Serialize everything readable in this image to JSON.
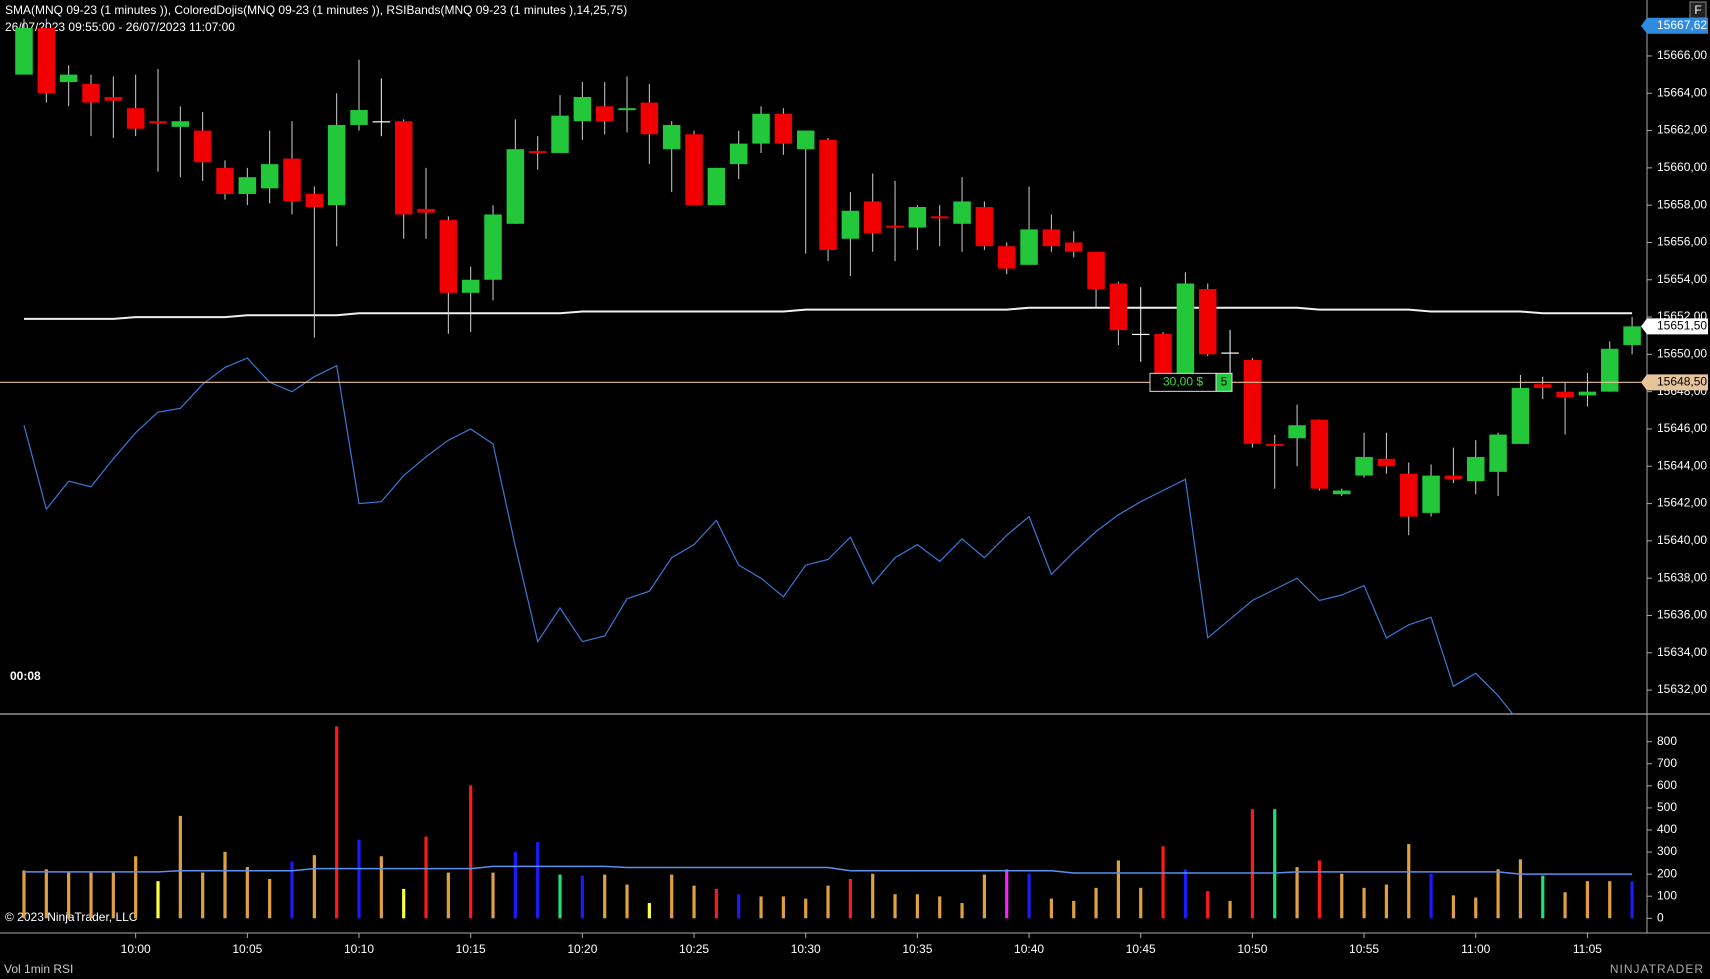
{
  "screen": {
    "title": "SMA(MNQ 09-23 (1 minutes )), ColoredDojis(MNQ 09-23 (1 minutes )), RSIBands(MNQ 09-23 (1 minutes ),14,25,75)",
    "date_range": "26/07/2023 09:55:00 - 26/07/2023 11:07:00",
    "timer": "00:08",
    "copyright": "© 2023 NinjaTrader, LLC",
    "panel_label": "Vol 1min RSI",
    "logo": "NINJATRADER",
    "button": "F"
  },
  "chart_data": [
    {
      "type": "candlestick",
      "up_color": "#22c83a",
      "down_color": "#f00000",
      "doji_color": "#ffffff",
      "ylim": [
        15630.7,
        15669.0
      ],
      "yticks": [
        {
          "value": 15632,
          "label": "15632,00"
        },
        {
          "value": 15634,
          "label": "15634,00"
        },
        {
          "value": 15636,
          "label": "15636,00"
        },
        {
          "value": 15638,
          "label": "15638,00"
        },
        {
          "value": 15640,
          "label": "15640,00"
        },
        {
          "value": 15642,
          "label": "15642,00"
        },
        {
          "value": 15644,
          "label": "15644,00"
        },
        {
          "value": 15646,
          "label": "15646,00"
        },
        {
          "value": 15648,
          "label": "15648,00"
        },
        {
          "value": 15650,
          "label": "15650,00"
        },
        {
          "value": 15652,
          "label": "15652,00"
        },
        {
          "value": 15654,
          "label": "15654,00"
        },
        {
          "value": 15656,
          "label": "15656,00"
        },
        {
          "value": 15658,
          "label": "15658,00"
        },
        {
          "value": 15660,
          "label": "15660,00"
        },
        {
          "value": 15662,
          "label": "15662,00"
        },
        {
          "value": 15664,
          "label": "15664,00"
        },
        {
          "value": 15666,
          "label": "15666,00"
        }
      ],
      "open": [
        15665.0,
        15667.5,
        15664.6,
        15664.5,
        15663.8,
        15663.2,
        15662.5,
        15662.2,
        15662.0,
        15660.0,
        15658.6,
        15658.9,
        15660.5,
        15658.6,
        15658.0,
        15662.3,
        15662.5,
        15662.5,
        15657.8,
        15657.2,
        15653.3,
        15654.0,
        15657.0,
        15660.9,
        15660.8,
        15662.5,
        15663.3,
        15663.1,
        15663.5,
        15661.0,
        15661.8,
        15658.0,
        15660.2,
        15661.3,
        15662.9,
        15661.0,
        15661.5,
        15656.2,
        15658.2,
        15656.9,
        15656.8,
        15657.4,
        15657.0,
        15657.9,
        15655.8,
        15654.8,
        15656.7,
        15656.0,
        15655.5,
        15653.8,
        15651.1,
        15651.1,
        15648.8,
        15653.5,
        15650.1,
        15649.7,
        15645.2,
        15645.5,
        15646.5,
        15642.5,
        15643.5,
        15644.4,
        15643.6,
        15641.5,
        15643.5,
        15643.2,
        15643.7,
        15645.2,
        15648.4,
        15648.0,
        15647.8,
        15648.0,
        15650.5
      ],
      "high": [
        15668.0,
        15668.0,
        15665.5,
        15665.0,
        15664.9,
        15665.0,
        15665.3,
        15663.3,
        15663.0,
        15660.4,
        15660.0,
        15662.0,
        15662.5,
        15659.0,
        15664.0,
        15665.8,
        15664.8,
        15662.6,
        15660.0,
        15657.4,
        15654.7,
        15658.0,
        15662.6,
        15661.7,
        15663.9,
        15664.6,
        15664.6,
        15664.9,
        15664.5,
        15662.5,
        15662.0,
        15660.0,
        15662.0,
        15663.3,
        15663.2,
        15662.0,
        15661.6,
        15658.7,
        15659.7,
        15659.3,
        15658.0,
        15658.0,
        15659.5,
        15658.2,
        15656.0,
        15659.0,
        15657.5,
        15656.6,
        15655.5,
        15653.9,
        15653.6,
        15651.2,
        15654.4,
        15653.8,
        15651.3,
        15649.8,
        15645.7,
        15647.3,
        15646.5,
        15642.8,
        15645.8,
        15645.8,
        15644.2,
        15644.1,
        15645.0,
        15645.4,
        15645.8,
        15648.9,
        15648.8,
        15648.5,
        15649.0,
        15650.7,
        15652.0
      ],
      "low": [
        15665.0,
        15663.5,
        15663.3,
        15661.7,
        15661.6,
        15661.7,
        15659.8,
        15659.5,
        15659.3,
        15658.3,
        15658.0,
        15658.1,
        15657.5,
        15650.9,
        15655.8,
        15662.0,
        15661.7,
        15656.2,
        15656.2,
        15651.1,
        15651.2,
        15652.9,
        15657.0,
        15659.9,
        15660.8,
        15661.5,
        15661.8,
        15661.9,
        15660.2,
        15658.7,
        15658.0,
        15658.0,
        15659.4,
        15660.8,
        15660.7,
        15655.4,
        15655.0,
        15654.2,
        15655.5,
        15655.0,
        15655.6,
        15655.8,
        15655.5,
        15655.6,
        15654.3,
        15654.8,
        15655.5,
        15655.2,
        15652.5,
        15650.5,
        15649.6,
        15648.7,
        15648.8,
        15649.9,
        15648.5,
        15645.0,
        15642.8,
        15644.0,
        15642.7,
        15642.4,
        15643.4,
        15643.6,
        15640.3,
        15641.3,
        15643.1,
        15642.5,
        15642.4,
        15645.2,
        15647.6,
        15645.7,
        15647.2,
        15648.0,
        15650.0
      ],
      "close": [
        15667.5,
        15664.0,
        15665.0,
        15663.5,
        15663.6,
        15662.1,
        15662.4,
        15662.5,
        15660.3,
        15658.6,
        15659.5,
        15660.2,
        15658.2,
        15657.9,
        15662.3,
        15663.1,
        15662.5,
        15657.5,
        15657.6,
        15653.3,
        15654.0,
        15657.5,
        15661.0,
        15660.8,
        15662.8,
        15663.8,
        15662.5,
        15663.2,
        15661.8,
        15662.3,
        15658.0,
        15660.0,
        15661.3,
        15662.9,
        15661.3,
        15662.0,
        15655.6,
        15657.7,
        15656.5,
        15656.8,
        15657.9,
        15657.3,
        15658.2,
        15655.8,
        15654.6,
        15656.7,
        15655.8,
        15655.5,
        15653.5,
        15651.3,
        15651.1,
        15648.8,
        15653.8,
        15650.0,
        15650.1,
        15645.2,
        15645.1,
        15646.2,
        15642.8,
        15642.7,
        15644.5,
        15644.0,
        15641.3,
        15643.5,
        15643.3,
        15644.5,
        15645.7,
        15648.2,
        15648.2,
        15647.7,
        15648.0,
        15650.3,
        15651.5
      ],
      "series": [
        {
          "name": "SMA",
          "color": "#f0f0f0",
          "values": [
            15651.9,
            15651.9,
            15651.9,
            15651.9,
            15651.9,
            15652.0,
            15652.0,
            15652.0,
            15652.0,
            15652.0,
            15652.1,
            15652.1,
            15652.1,
            15652.1,
            15652.1,
            15652.2,
            15652.2,
            15652.2,
            15652.2,
            15652.2,
            15652.2,
            15652.2,
            15652.2,
            15652.2,
            15652.2,
            15652.3,
            15652.3,
            15652.3,
            15652.3,
            15652.3,
            15652.3,
            15652.3,
            15652.3,
            15652.3,
            15652.3,
            15652.4,
            15652.4,
            15652.4,
            15652.4,
            15652.4,
            15652.4,
            15652.4,
            15652.4,
            15652.4,
            15652.4,
            15652.5,
            15652.5,
            15652.5,
            15652.5,
            15652.5,
            15652.5,
            15652.5,
            15652.5,
            15652.5,
            15652.5,
            15652.5,
            15652.5,
            15652.5,
            15652.4,
            15652.4,
            15652.4,
            15652.4,
            15652.4,
            15652.3,
            15652.3,
            15652.3,
            15652.3,
            15652.3,
            15652.2,
            15652.2,
            15652.2,
            15652.2,
            15652.2
          ]
        },
        {
          "name": "RSI",
          "color": "#3a78d8",
          "values": [
            15646.2,
            15641.7,
            15643.2,
            15642.9,
            15644.4,
            15645.8,
            15646.9,
            15647.1,
            15648.4,
            15649.3,
            15649.8,
            15648.5,
            15648.0,
            15648.8,
            15649.4,
            15642.0,
            15642.1,
            15643.5,
            15644.5,
            15645.4,
            15646.0,
            15645.2,
            15639.7,
            15634.6,
            15636.4,
            15634.6,
            15634.9,
            15636.9,
            15637.3,
            15639.1,
            15639.8,
            15641.1,
            15638.7,
            15638.0,
            15637.0,
            15638.7,
            15639.0,
            15640.2,
            15637.7,
            15639.1,
            15639.8,
            15638.9,
            15640.1,
            15639.1,
            15640.3,
            15641.3,
            15638.2,
            15639.4,
            15640.5,
            15641.4,
            15642.1,
            15642.7,
            15643.3,
            15634.8,
            15635.8,
            15636.8,
            15637.4,
            15638.0,
            15636.8,
            15637.1,
            15637.6,
            15634.8,
            15635.5,
            15635.9,
            15632.2,
            15632.9,
            15631.7,
            15630.2,
            null,
            null,
            null,
            null,
            null
          ]
        }
      ],
      "price_markers": [
        {
          "value": 15667.62,
          "label": "15667,62",
          "color": "#2f8be0"
        },
        {
          "value": 15651.5,
          "label": "15651,50",
          "color": "#ffffff"
        },
        {
          "value": 15648.5,
          "label": "15648,50",
          "color": "#e8c49a"
        }
      ],
      "order": {
        "value": 15648.5,
        "pnl": "30,00 $",
        "qty": "5",
        "color": "#e8c49a"
      }
    },
    {
      "type": "bar",
      "ylim": [
        -64,
        914
      ],
      "yticks": [
        0,
        100,
        200,
        300,
        400,
        500,
        600,
        700,
        800
      ],
      "categories": [
        null,
        null,
        null,
        null,
        null,
        "10:00",
        null,
        null,
        null,
        null,
        "10:05",
        null,
        null,
        null,
        null,
        "10:10",
        null,
        null,
        null,
        null,
        "10:15",
        null,
        null,
        null,
        null,
        "10:20",
        null,
        null,
        null,
        null,
        "10:25",
        null,
        null,
        null,
        null,
        "10:30",
        null,
        null,
        null,
        null,
        "10:35",
        null,
        null,
        null,
        null,
        "10:40",
        null,
        null,
        null,
        null,
        "10:45",
        null,
        null,
        null,
        null,
        "10:50",
        null,
        null,
        null,
        null,
        "10:55",
        null,
        null,
        null,
        null,
        "11:00",
        null,
        null,
        null,
        null,
        "11:05",
        null,
        null
      ],
      "values": [
        217,
        222,
        207,
        207,
        207,
        281,
        168,
        464,
        207,
        301,
        232,
        178,
        257,
        286,
        869,
        356,
        281,
        133,
        370,
        207,
        602,
        207,
        301,
        346,
        198,
        193,
        198,
        153,
        69,
        198,
        148,
        133,
        109,
        99,
        99,
        89,
        148,
        178,
        202,
        109,
        109,
        99,
        69,
        198,
        222,
        202,
        89,
        79,
        138,
        262,
        138,
        326,
        222,
        123,
        79,
        494,
        494,
        232,
        262,
        202,
        138,
        153,
        336,
        202,
        104,
        94,
        222,
        267,
        193,
        118,
        168,
        168,
        168
      ],
      "colors": [
        "#e0a040",
        "#e0a040",
        "#e0a040",
        "#e0a040",
        "#e0a040",
        "#e0a040",
        "#ffff40",
        "#e0a040",
        "#e0a040",
        "#e0a040",
        "#e0a040",
        "#e0a040",
        "#1a1aff",
        "#e0a040",
        "#ff1a1a",
        "#1a1aff",
        "#e0a040",
        "#ffff40",
        "#ff1a1a",
        "#e0a040",
        "#ff1a1a",
        "#e0a040",
        "#1a1aff",
        "#1a1aff",
        "#20e070",
        "#1a1aff",
        "#e0a040",
        "#e0a040",
        "#ffff40",
        "#e0a040",
        "#e0a040",
        "#ff1a1a",
        "#1a1aff",
        "#e0a040",
        "#e0a040",
        "#e0a040",
        "#e0a040",
        "#ff1a1a",
        "#e0a040",
        "#e0a040",
        "#e0a040",
        "#e0a040",
        "#e0a040",
        "#e0a040",
        "#ff20ff",
        "#1a1aff",
        "#e0a040",
        "#e0a040",
        "#e0a040",
        "#e0a040",
        "#e0a040",
        "#ff1a1a",
        "#1a1aff",
        "#ff1a1a",
        "#e0a040",
        "#ff1a1a",
        "#20e070",
        "#e0a040",
        "#ff1a1a",
        "#e0a040",
        "#e0a040",
        "#e0a040",
        "#e0a040",
        "#1a1aff",
        "#e0a040",
        "#e0a040",
        "#e0a040",
        "#e0a040",
        "#20e070",
        "#e0a040",
        "#e0a040",
        "#e0a040",
        "#1a1aff"
      ],
      "series": [
        {
          "name": "Volume SMA",
          "color": "#5b8ff0",
          "values": [
            210,
            210,
            210,
            210,
            210,
            210,
            210,
            215,
            215,
            215,
            215,
            215,
            215,
            225,
            225,
            225,
            225,
            225,
            225,
            225,
            225,
            235,
            235,
            235,
            235,
            235,
            235,
            230,
            230,
            230,
            230,
            230,
            230,
            230,
            230,
            230,
            230,
            215,
            215,
            215,
            215,
            215,
            215,
            215,
            215,
            215,
            215,
            205,
            205,
            205,
            205,
            205,
            205,
            205,
            205,
            205,
            205,
            210,
            210,
            210,
            210,
            210,
            210,
            210,
            210,
            210,
            210,
            200,
            200,
            200,
            200,
            200,
            200
          ]
        }
      ]
    }
  ]
}
